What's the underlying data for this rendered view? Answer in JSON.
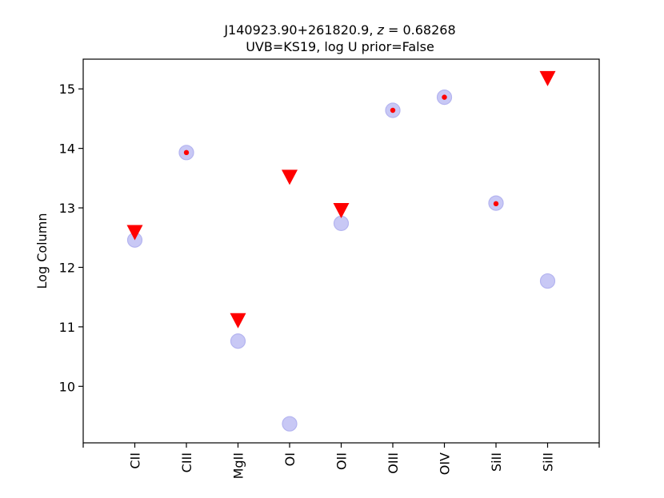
{
  "chart_data": {
    "type": "scatter",
    "title": "J140923.90+261820.9, z = 0.68268",
    "title_parts": {
      "prefix": "J140923.90+261820.9, ",
      "var": "z",
      "suffix": " = 0.68268"
    },
    "subtitle": "UVB=KS19, log U prior=False",
    "xlabel": "",
    "ylabel": "Log Column",
    "categories": [
      "CII",
      "CIII",
      "MgII",
      "OI",
      "OII",
      "OIII",
      "OIV",
      "SiII",
      "SiII"
    ],
    "xlim": [
      -1,
      9
    ],
    "ylim": [
      9.05,
      15.5
    ],
    "yticks": [
      10,
      11,
      12,
      13,
      14,
      15
    ],
    "grid": false,
    "series": [
      {
        "marker": "circle",
        "color": "#c8c8f5",
        "points": [
          {
            "x": 0,
            "y": 12.46
          },
          {
            "x": 1,
            "y": 13.93
          },
          {
            "x": 2,
            "y": 10.76
          },
          {
            "x": 3,
            "y": 9.37
          },
          {
            "x": 4,
            "y": 12.74
          },
          {
            "x": 5,
            "y": 14.64
          },
          {
            "x": 6,
            "y": 14.86
          },
          {
            "x": 7,
            "y": 13.08
          },
          {
            "x": 8,
            "y": 11.77
          }
        ]
      },
      {
        "marker": "dot",
        "color": "#ff0000",
        "points": [
          {
            "x": 1,
            "y": 13.93
          },
          {
            "x": 5,
            "y": 14.64
          },
          {
            "x": 6,
            "y": 14.86
          },
          {
            "x": 7,
            "y": 13.07
          }
        ]
      },
      {
        "marker": "triangle-down",
        "color": "#ff0000",
        "points": [
          {
            "x": 0,
            "y": 12.59
          },
          {
            "x": 2,
            "y": 11.11
          },
          {
            "x": 3,
            "y": 13.52
          },
          {
            "x": 4,
            "y": 12.96
          },
          {
            "x": 8,
            "y": 15.18
          }
        ]
      }
    ]
  }
}
